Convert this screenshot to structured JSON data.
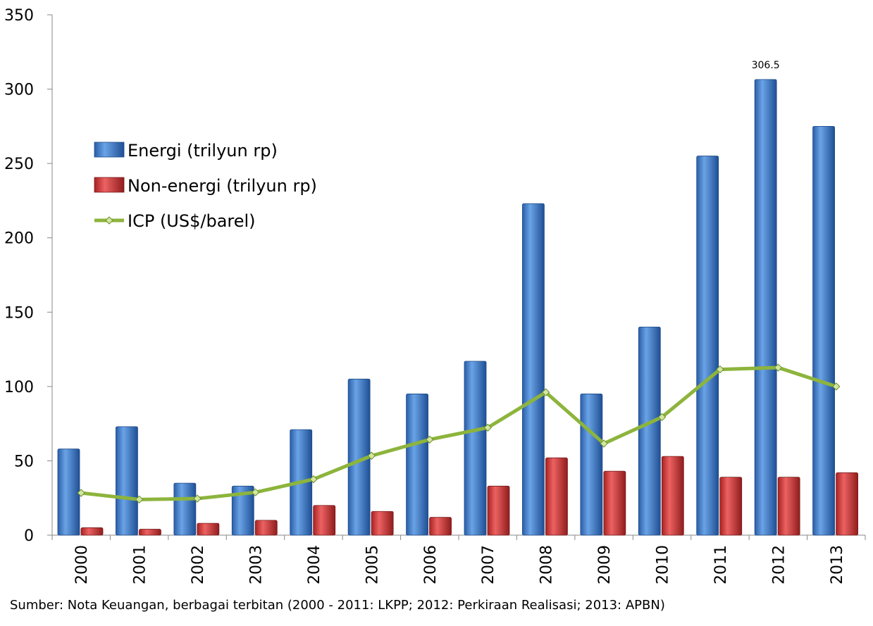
{
  "chart_data": {
    "type": "bar",
    "categories": [
      "2000",
      "2001",
      "2002",
      "2003",
      "2004",
      "2005",
      "2006",
      "2007",
      "2008",
      "2009",
      "2010",
      "2011",
      "2012",
      "2013"
    ],
    "series": [
      {
        "name": "Energi (trilyun rp)",
        "kind": "bar",
        "color": "#3a78c8",
        "values": [
          58,
          73,
          35,
          33,
          71,
          105,
          95,
          117,
          223,
          95,
          140,
          255,
          306.5,
          275
        ]
      },
      {
        "name": "Non-energi (trilyun rp)",
        "kind": "bar",
        "color": "#cc3333",
        "values": [
          5,
          4,
          8,
          10,
          20,
          16,
          12,
          33,
          52,
          43,
          53,
          39,
          39,
          42
        ]
      },
      {
        "name": "ICP (US$/barel)",
        "kind": "line",
        "color": "#8db43c",
        "values": [
          28.4,
          24,
          24.6,
          28.8,
          37.6,
          53.4,
          64.3,
          72.3,
          96.1,
          61.6,
          79.4,
          111.5,
          112.7,
          100
        ]
      }
    ],
    "ylim": [
      0,
      350
    ],
    "yticks": [
      "0",
      "50",
      "100",
      "150",
      "200",
      "250",
      "300",
      "350"
    ],
    "annotations": [
      {
        "category": "2012",
        "text": "306.5"
      }
    ],
    "legend_position": "upper-left",
    "grid": false,
    "title": "",
    "xlabel": "",
    "ylabel": ""
  },
  "footer": {
    "source": "Sumber: Nota Keuangan, berbagai terbitan (2000 - 2011: LKPP; 2012: Perkiraan Realisasi; 2013: APBN)"
  }
}
